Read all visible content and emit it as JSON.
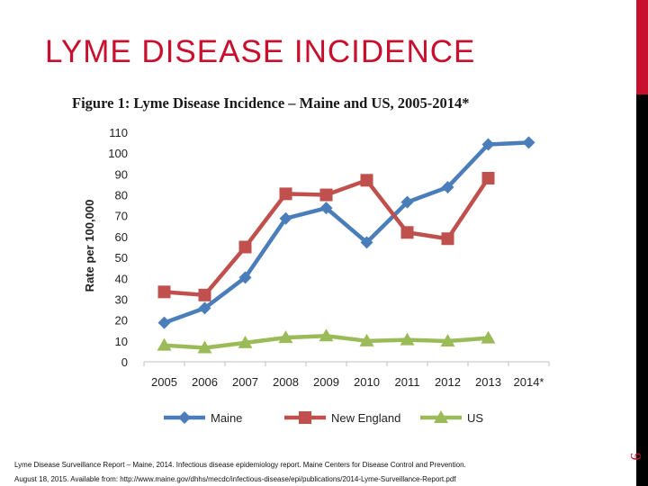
{
  "slide": {
    "title": "LYME DISEASE INCIDENCE",
    "page_number": "9",
    "accent_color": "#c8102e"
  },
  "footnote": {
    "line1": "Lyme Disease Surveillance Report – Maine, 2014. Infectious disease epidemiology report. Maine Centers for Disease Control and Prevention.",
    "line2": "August 18, 2015. Available from: http://www.maine.gov/dhhs/mecdc/infectious-disease/epi/publications/2014-Lyme-Surveillance-Report.pdf"
  },
  "chart_data": {
    "type": "line",
    "title": "Figure 1:  Lyme Disease Incidence – Maine and US, 2005-2014*",
    "xlabel": "",
    "ylabel": "Rate per 100,000",
    "categories": [
      "2005",
      "2006",
      "2007",
      "2008",
      "2009",
      "2010",
      "2011",
      "2012",
      "2013",
      "2014*"
    ],
    "ylim": [
      0,
      110
    ],
    "yticks": [
      0,
      10,
      20,
      30,
      40,
      50,
      60,
      70,
      80,
      90,
      100,
      110
    ],
    "grid": false,
    "legend_position": "bottom",
    "series": [
      {
        "name": "Maine",
        "color": "#4a7ebb",
        "marker": "diamond",
        "values": [
          18.7,
          25.7,
          40.4,
          68.7,
          73.7,
          57.2,
          76.5,
          83.7,
          104.2,
          105.1
        ]
      },
      {
        "name": "New England",
        "color": "#c0504d",
        "marker": "square",
        "values": [
          33.5,
          32,
          55,
          80.5,
          80,
          87,
          62,
          59,
          88,
          null
        ]
      },
      {
        "name": "US",
        "color": "#9bbb59",
        "marker": "triangle",
        "values": [
          7.9,
          6.7,
          9.1,
          11.6,
          12.4,
          10,
          10.5,
          9.9,
          11.4,
          null
        ]
      }
    ]
  }
}
